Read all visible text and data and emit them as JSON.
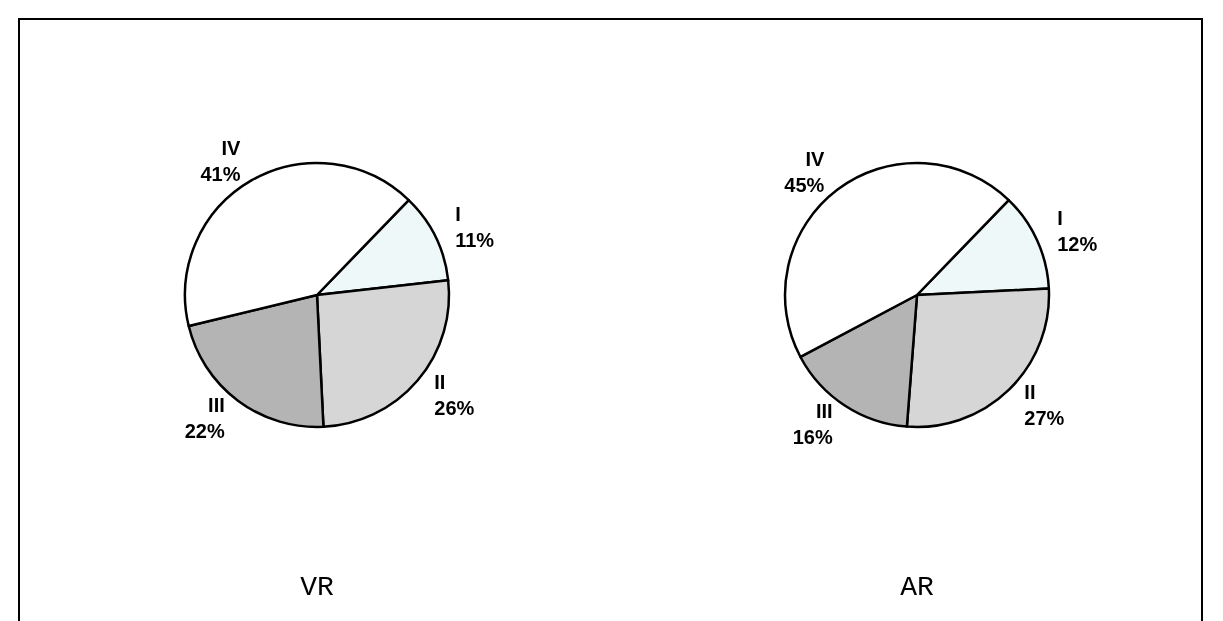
{
  "chart_data": [
    {
      "type": "pie",
      "title": "VR",
      "categories": [
        "I",
        "II",
        "III",
        "IV"
      ],
      "values": [
        11,
        26,
        22,
        41
      ],
      "value_labels": [
        "11%",
        "26%",
        "22%",
        "41%"
      ],
      "colors": [
        "#eef8f8",
        "#d6d6d6",
        "#b4b4b4",
        "#ffffff"
      ],
      "legend": false
    },
    {
      "type": "pie",
      "title": "AR",
      "categories": [
        "I",
        "II",
        "III",
        "IV"
      ],
      "values": [
        12,
        27,
        16,
        45
      ],
      "value_labels": [
        "12%",
        "27%",
        "16%",
        "45%"
      ],
      "colors": [
        "#eef8f8",
        "#d6d6d6",
        "#b4b4b4",
        "#ffffff"
      ],
      "legend": false
    }
  ]
}
